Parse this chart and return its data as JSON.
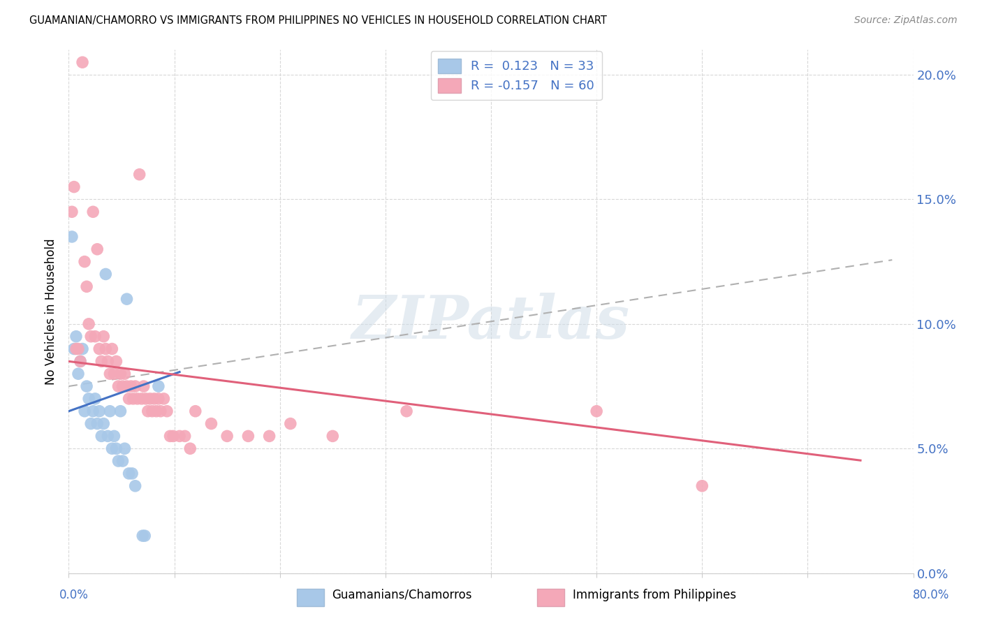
{
  "title": "GUAMANIAN/CHAMORRO VS IMMIGRANTS FROM PHILIPPINES NO VEHICLES IN HOUSEHOLD CORRELATION CHART",
  "source": "Source: ZipAtlas.com",
  "ylabel": "No Vehicles in Household",
  "xlim": [
    0.0,
    80.0
  ],
  "ylim": [
    0.0,
    21.0
  ],
  "yticks": [
    0.0,
    5.0,
    10.0,
    15.0,
    20.0
  ],
  "xticks": [
    0.0,
    10.0,
    20.0,
    30.0,
    40.0,
    50.0,
    60.0,
    70.0,
    80.0
  ],
  "blue_R": 0.123,
  "blue_N": 33,
  "pink_R": -0.157,
  "pink_N": 60,
  "blue_color": "#a8c8e8",
  "pink_color": "#f4a8b8",
  "blue_line_color": "#4472c4",
  "pink_line_color": "#e0607a",
  "trend_line_color": "#b0b0b0",
  "axis_color": "#4472c4",
  "watermark_text": "ZIPatlas",
  "legend_label_blue": "R =  0.123   N = 33",
  "legend_label_pink": "R = -0.157   N = 60",
  "bottom_label_blue": "Guamanians/Chamorros",
  "bottom_label_pink": "Immigrants from Philippines",
  "blue_points": [
    [
      0.3,
      13.5
    ],
    [
      0.5,
      9.0
    ],
    [
      0.7,
      9.5
    ],
    [
      0.9,
      8.0
    ],
    [
      1.1,
      8.5
    ],
    [
      1.3,
      9.0
    ],
    [
      1.5,
      6.5
    ],
    [
      1.7,
      7.5
    ],
    [
      1.9,
      7.0
    ],
    [
      2.1,
      6.0
    ],
    [
      2.3,
      6.5
    ],
    [
      2.5,
      7.0
    ],
    [
      2.7,
      6.0
    ],
    [
      2.9,
      6.5
    ],
    [
      3.1,
      5.5
    ],
    [
      3.3,
      6.0
    ],
    [
      3.5,
      12.0
    ],
    [
      3.7,
      5.5
    ],
    [
      3.9,
      6.5
    ],
    [
      4.1,
      5.0
    ],
    [
      4.3,
      5.5
    ],
    [
      4.5,
      5.0
    ],
    [
      4.7,
      4.5
    ],
    [
      4.9,
      6.5
    ],
    [
      5.1,
      4.5
    ],
    [
      5.3,
      5.0
    ],
    [
      5.5,
      11.0
    ],
    [
      5.7,
      4.0
    ],
    [
      6.0,
      4.0
    ],
    [
      6.3,
      3.5
    ],
    [
      7.0,
      1.5
    ],
    [
      7.2,
      1.5
    ],
    [
      8.5,
      7.5
    ]
  ],
  "pink_points": [
    [
      0.3,
      14.5
    ],
    [
      0.5,
      15.5
    ],
    [
      0.7,
      9.0
    ],
    [
      0.9,
      9.0
    ],
    [
      1.1,
      8.5
    ],
    [
      1.3,
      20.5
    ],
    [
      1.5,
      12.5
    ],
    [
      1.7,
      11.5
    ],
    [
      1.9,
      10.0
    ],
    [
      2.1,
      9.5
    ],
    [
      2.3,
      14.5
    ],
    [
      2.5,
      9.5
    ],
    [
      2.7,
      13.0
    ],
    [
      2.9,
      9.0
    ],
    [
      3.1,
      8.5
    ],
    [
      3.3,
      9.5
    ],
    [
      3.5,
      9.0
    ],
    [
      3.7,
      8.5
    ],
    [
      3.9,
      8.0
    ],
    [
      4.1,
      9.0
    ],
    [
      4.3,
      8.0
    ],
    [
      4.5,
      8.5
    ],
    [
      4.7,
      7.5
    ],
    [
      4.9,
      8.0
    ],
    [
      5.1,
      7.5
    ],
    [
      5.3,
      8.0
    ],
    [
      5.5,
      7.5
    ],
    [
      5.7,
      7.0
    ],
    [
      5.9,
      7.5
    ],
    [
      6.1,
      7.0
    ],
    [
      6.3,
      7.5
    ],
    [
      6.5,
      7.0
    ],
    [
      6.7,
      16.0
    ],
    [
      6.9,
      7.0
    ],
    [
      7.1,
      7.5
    ],
    [
      7.3,
      7.0
    ],
    [
      7.5,
      6.5
    ],
    [
      7.7,
      7.0
    ],
    [
      7.9,
      6.5
    ],
    [
      8.1,
      7.0
    ],
    [
      8.3,
      6.5
    ],
    [
      8.5,
      7.0
    ],
    [
      8.7,
      6.5
    ],
    [
      9.0,
      7.0
    ],
    [
      9.3,
      6.5
    ],
    [
      9.6,
      5.5
    ],
    [
      9.9,
      5.5
    ],
    [
      10.5,
      5.5
    ],
    [
      11.0,
      5.5
    ],
    [
      11.5,
      5.0
    ],
    [
      12.0,
      6.5
    ],
    [
      13.5,
      6.0
    ],
    [
      15.0,
      5.5
    ],
    [
      17.0,
      5.5
    ],
    [
      19.0,
      5.5
    ],
    [
      21.0,
      6.0
    ],
    [
      25.0,
      5.5
    ],
    [
      32.0,
      6.5
    ],
    [
      50.0,
      6.5
    ],
    [
      60.0,
      3.5
    ]
  ],
  "background_color": "#ffffff",
  "grid_color": "#d8d8d8"
}
